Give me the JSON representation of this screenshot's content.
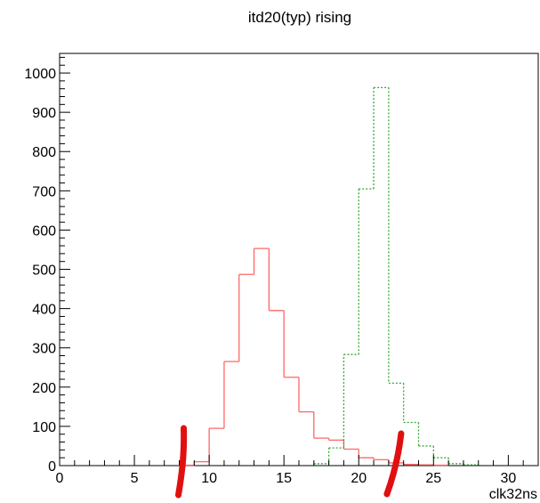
{
  "chart_data": {
    "type": "bar",
    "title": "itd20(typ) rising",
    "xlabel": "clk32ns",
    "ylabel": "",
    "xlim": [
      0,
      32
    ],
    "ylim": [
      0,
      1050
    ],
    "xticks": [
      0,
      5,
      10,
      15,
      20,
      25,
      30
    ],
    "yticks": [
      0,
      100,
      200,
      300,
      400,
      500,
      600,
      700,
      800,
      900,
      1000
    ],
    "grid": false,
    "bin_width": 1,
    "series": [
      {
        "color": "#ff6666",
        "line_style": "solid",
        "bins": [
          {
            "x": 8,
            "y": 1
          },
          {
            "x": 9,
            "y": 10
          },
          {
            "x": 10,
            "y": 95
          },
          {
            "x": 11,
            "y": 265
          },
          {
            "x": 12,
            "y": 487
          },
          {
            "x": 13,
            "y": 553
          },
          {
            "x": 14,
            "y": 395
          },
          {
            "x": 15,
            "y": 225
          },
          {
            "x": 16,
            "y": 137
          },
          {
            "x": 17,
            "y": 70
          },
          {
            "x": 18,
            "y": 65
          },
          {
            "x": 19,
            "y": 42
          },
          {
            "x": 20,
            "y": 20
          },
          {
            "x": 21,
            "y": 15
          },
          {
            "x": 22,
            "y": 7
          },
          {
            "x": 23,
            "y": 3
          },
          {
            "x": 24,
            "y": 2
          },
          {
            "x": 25,
            "y": 1
          }
        ]
      },
      {
        "color": "#33aa33",
        "line_style": "dotted",
        "bins": [
          {
            "x": 17,
            "y": 5
          },
          {
            "x": 18,
            "y": 45
          },
          {
            "x": 19,
            "y": 283
          },
          {
            "x": 20,
            "y": 705
          },
          {
            "x": 21,
            "y": 963
          },
          {
            "x": 22,
            "y": 210
          },
          {
            "x": 23,
            "y": 110
          },
          {
            "x": 24,
            "y": 50
          },
          {
            "x": 25,
            "y": 20
          },
          {
            "x": 26,
            "y": 5
          },
          {
            "x": 27,
            "y": 2
          }
        ]
      }
    ],
    "annotations": [
      {
        "type": "hand-drawn-marker",
        "color": "#e01010",
        "near_x": 8
      },
      {
        "type": "hand-drawn-marker",
        "color": "#e01010",
        "near_x": 22.3
      }
    ]
  }
}
